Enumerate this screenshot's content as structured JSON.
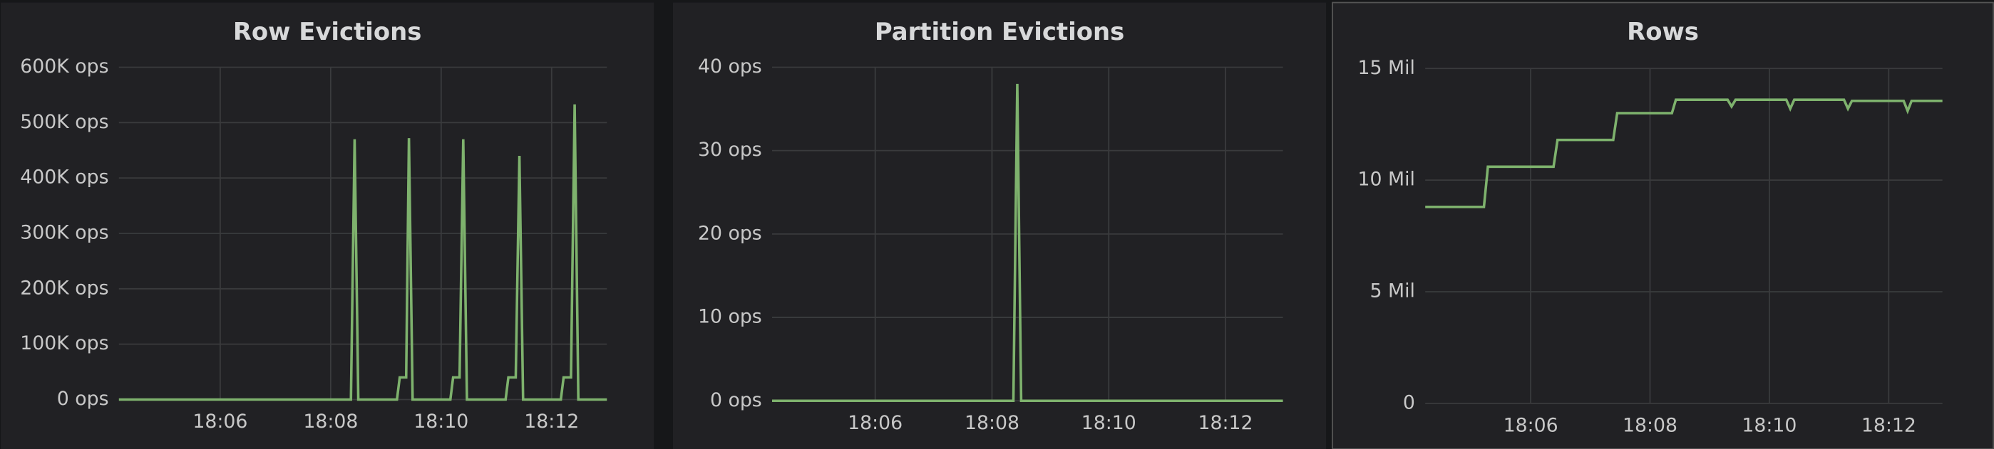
{
  "chart_data": [
    {
      "type": "line",
      "title": "Row Evictions",
      "color": "#7eb26d",
      "grid": true,
      "x": [
        "18:04:10",
        "18:08:22",
        "18:08:26",
        "18:08:30",
        "18:09:12",
        "18:09:15",
        "18:09:22",
        "18:09:25",
        "18:09:29",
        "18:10:10",
        "18:10:13",
        "18:10:20",
        "18:10:24",
        "18:10:28",
        "18:11:10",
        "18:11:13",
        "18:11:21",
        "18:11:25",
        "18:11:29",
        "18:12:10",
        "18:12:13",
        "18:12:21",
        "18:12:25",
        "18:12:29",
        "18:13:00"
      ],
      "values": [
        0,
        0,
        470000,
        0,
        0,
        40000,
        40000,
        472000,
        0,
        0,
        40000,
        40000,
        470000,
        0,
        0,
        40000,
        40000,
        440000,
        0,
        0,
        40000,
        40000,
        533000,
        0,
        0
      ],
      "xlim": [
        "18:04:10",
        "18:13:00"
      ],
      "xticks": [
        "18:06",
        "18:08",
        "18:10",
        "18:12"
      ],
      "ylim": [
        0,
        600000
      ],
      "yticks": [
        {
          "value": 0,
          "label": "0 ops"
        },
        {
          "value": 100000,
          "label": "100K ops"
        },
        {
          "value": 200000,
          "label": "200K ops"
        },
        {
          "value": 300000,
          "label": "300K ops"
        },
        {
          "value": 400000,
          "label": "400K ops"
        },
        {
          "value": 500000,
          "label": "500K ops"
        },
        {
          "value": 600000,
          "label": "600K ops"
        }
      ]
    },
    {
      "type": "line",
      "title": "Partition Evictions",
      "color": "#7eb26d",
      "grid": true,
      "x": [
        "18:04:14",
        "18:08:22",
        "18:08:26",
        "18:08:30",
        "18:12:59"
      ],
      "values": [
        0,
        0,
        38,
        0,
        0
      ],
      "xlim": [
        "18:04:14",
        "18:12:59"
      ],
      "xticks": [
        "18:06",
        "18:08",
        "18:10",
        "18:12"
      ],
      "ylim": [
        0,
        40
      ],
      "yticks": [
        {
          "value": 0,
          "label": "0 ops"
        },
        {
          "value": 10,
          "label": "10 ops"
        },
        {
          "value": 20,
          "label": "20 ops"
        },
        {
          "value": 30,
          "label": "30 ops"
        },
        {
          "value": 40,
          "label": "40 ops"
        }
      ]
    },
    {
      "type": "line",
      "title": "Rows",
      "color": "#7eb26d",
      "grid": true,
      "x": [
        "18:04:14",
        "18:05:13",
        "18:05:17",
        "18:06:23",
        "18:06:27",
        "18:07:23",
        "18:07:27",
        "18:08:22",
        "18:08:26",
        "18:09:18",
        "18:09:22",
        "18:09:26",
        "18:10:17",
        "18:10:21",
        "18:10:25",
        "18:11:15",
        "18:11:19",
        "18:11:23",
        "18:12:15",
        "18:12:19",
        "18:12:23",
        "18:12:54"
      ],
      "values": [
        8800000,
        8800000,
        10600000,
        10600000,
        11800000,
        11800000,
        13000000,
        13000000,
        13600000,
        13600000,
        13300000,
        13600000,
        13600000,
        13200000,
        13600000,
        13600000,
        13200000,
        13550000,
        13550000,
        13100000,
        13550000,
        13550000
      ],
      "xlim": [
        "18:04:14",
        "18:12:54"
      ],
      "xticks": [
        "18:06",
        "18:08",
        "18:10",
        "18:12"
      ],
      "ylim": [
        0,
        15000000
      ],
      "yticks": [
        0,
        {
          "value": 5000000,
          "label": "5 Mil"
        },
        {
          "value": 10000000,
          "label": "10 Mil"
        },
        {
          "value": 15000000,
          "label": "15 Mil"
        }
      ]
    }
  ]
}
